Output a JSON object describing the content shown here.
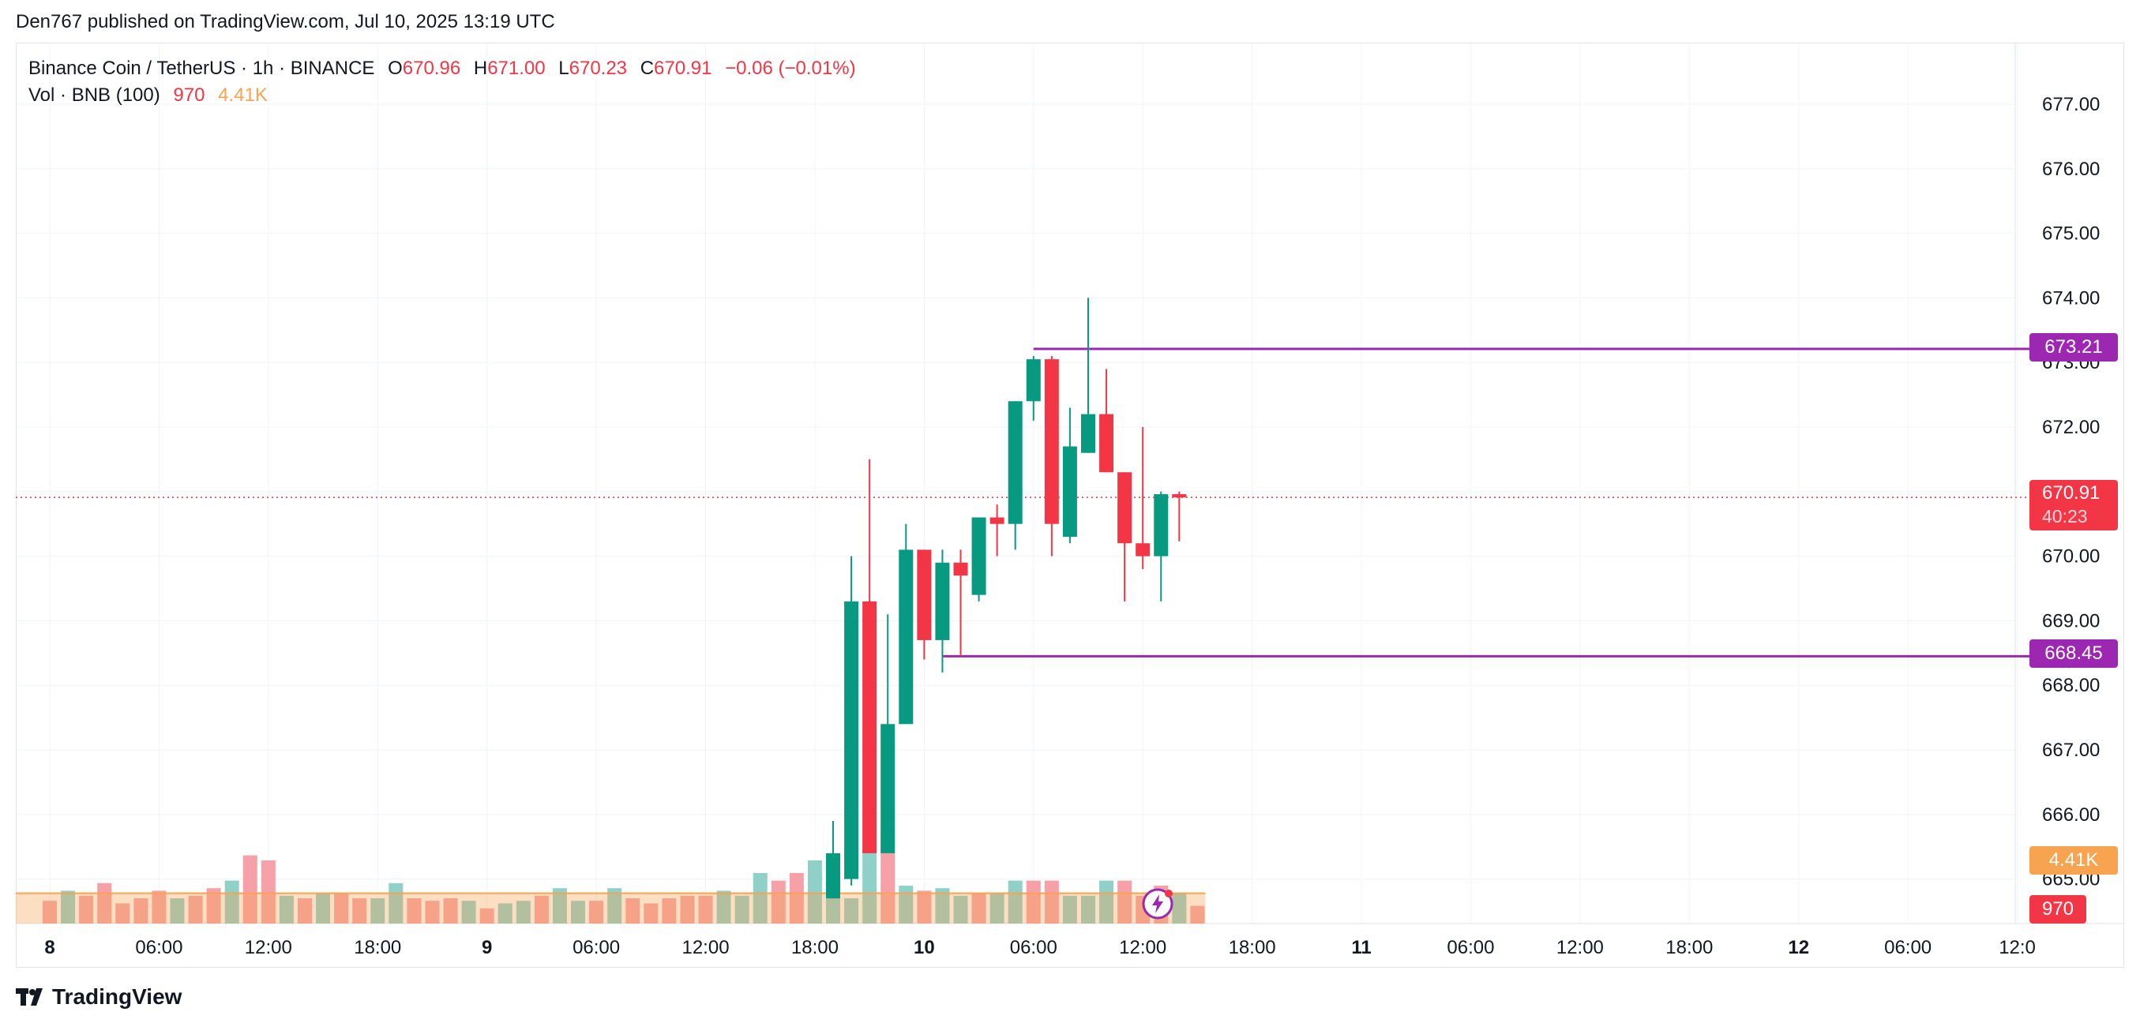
{
  "header": {
    "published_text": "Den767 published on TradingView.com, Jul 10, 2025 13:19 UTC"
  },
  "legend": {
    "symbol": "Binance Coin / TetherUS · 1h · BINANCE",
    "open_label": "O",
    "open_value": "670.96",
    "high_label": "H",
    "high_value": "671.00",
    "low_label": "L",
    "low_value": "670.23",
    "close_label": "C",
    "close_value": "670.91",
    "change": "−0.06 (−0.01%)",
    "volume_label": "Vol · BNB (100)",
    "volume_value": "970",
    "volume_ma_value": "4.41K"
  },
  "price_labels": {
    "resistance": "673.21",
    "support": "668.45",
    "last_price": "670.91",
    "countdown": "40:23",
    "volume_ma": "4.41K",
    "volume": "970"
  },
  "footer": {
    "brand": "TradingView"
  },
  "icons": {
    "logo": "tradingview-logo-icon",
    "bolt": "lightning-bolt-icon"
  },
  "colors": {
    "up": "#089981",
    "down": "#f23645",
    "vol_up": "#8fd0c9",
    "vol_down": "#f6a1a8",
    "vol_ma": "#f7a350",
    "level_line": "#9c27b0",
    "grid": "#f0f3fa"
  },
  "chart_data": {
    "type": "candlestick",
    "symbol": "BNBUSDT",
    "interval": "1h",
    "y_axis": {
      "ticks": [
        "665.00",
        "666.00",
        "667.00",
        "668.00",
        "669.00",
        "670.00",
        "671.00",
        "672.00",
        "673.00",
        "674.00",
        "675.00",
        "676.00",
        "677.00"
      ],
      "range": [
        664.3,
        677.5
      ]
    },
    "x_axis": {
      "ticks": [
        {
          "label": "8",
          "bold": true,
          "bar": 0
        },
        {
          "label": "06:00",
          "bar": 6
        },
        {
          "label": "12:00",
          "bar": 12
        },
        {
          "label": "18:00",
          "bar": 18
        },
        {
          "label": "9",
          "bold": true,
          "bar": 24
        },
        {
          "label": "06:00",
          "bar": 30
        },
        {
          "label": "12:00",
          "bar": 36
        },
        {
          "label": "18:00",
          "bar": 42
        },
        {
          "label": "10",
          "bold": true,
          "bar": 48
        },
        {
          "label": "06:00",
          "bar": 54
        },
        {
          "label": "12:00",
          "bar": 60
        },
        {
          "label": "18:00",
          "bar": 66
        },
        {
          "label": "11",
          "bold": true,
          "bar": 72
        },
        {
          "label": "06:00",
          "bar": 78
        },
        {
          "label": "12:00",
          "bar": 84
        },
        {
          "label": "18:00",
          "bar": 90
        },
        {
          "label": "12",
          "bold": true,
          "bar": 96
        },
        {
          "label": "06:00",
          "bar": 102
        },
        {
          "label": "12:0",
          "bar": 108
        }
      ]
    },
    "candles_first_bar": 43,
    "candles": [
      {
        "o": 664.7,
        "h": 665.9,
        "l": 664.7,
        "c": 665.4
      },
      {
        "o": 665.0,
        "h": 670.0,
        "l": 664.9,
        "c": 669.3
      },
      {
        "o": 669.3,
        "h": 671.5,
        "l": 665.4,
        "c": 665.4
      },
      {
        "o": 665.4,
        "h": 669.1,
        "l": 665.4,
        "c": 667.4
      },
      {
        "o": 667.4,
        "h": 670.5,
        "l": 667.4,
        "c": 670.1
      },
      {
        "o": 670.1,
        "h": 670.1,
        "l": 668.4,
        "c": 668.7
      },
      {
        "o": 668.7,
        "h": 670.1,
        "l": 668.2,
        "c": 669.9
      },
      {
        "o": 669.9,
        "h": 670.1,
        "l": 668.45,
        "c": 669.7
      },
      {
        "o": 669.4,
        "h": 670.6,
        "l": 669.3,
        "c": 670.6
      },
      {
        "o": 670.6,
        "h": 670.8,
        "l": 670.0,
        "c": 670.5
      },
      {
        "o": 670.5,
        "h": 672.4,
        "l": 670.1,
        "c": 672.4
      },
      {
        "o": 672.4,
        "h": 673.1,
        "l": 672.1,
        "c": 673.05
      },
      {
        "o": 673.05,
        "h": 673.1,
        "l": 670.0,
        "c": 670.5
      },
      {
        "o": 670.3,
        "h": 672.3,
        "l": 670.2,
        "c": 671.7
      },
      {
        "o": 671.6,
        "h": 674.0,
        "l": 671.6,
        "c": 672.2
      },
      {
        "o": 672.2,
        "h": 672.9,
        "l": 671.3,
        "c": 671.3
      },
      {
        "o": 671.3,
        "h": 671.3,
        "l": 669.3,
        "c": 670.2
      },
      {
        "o": 670.2,
        "h": 672.0,
        "l": 669.8,
        "c": 670.0
      },
      {
        "o": 670.0,
        "h": 671.0,
        "l": 669.3,
        "c": 670.96
      },
      {
        "o": 670.96,
        "h": 671.0,
        "l": 670.23,
        "c": 670.91
      }
    ],
    "volume": {
      "unit": "relative",
      "ma_level": 4410,
      "bars": [
        {
          "v": 0.45,
          "up": false
        },
        {
          "v": 0.65,
          "up": true
        },
        {
          "v": 0.55,
          "up": false
        },
        {
          "v": 0.8,
          "up": false
        },
        {
          "v": 0.4,
          "up": false
        },
        {
          "v": 0.5,
          "up": false
        },
        {
          "v": 0.65,
          "up": false
        },
        {
          "v": 0.5,
          "up": true
        },
        {
          "v": 0.55,
          "up": false
        },
        {
          "v": 0.7,
          "up": false
        },
        {
          "v": 0.85,
          "up": true
        },
        {
          "v": 1.35,
          "up": false
        },
        {
          "v": 1.25,
          "up": false
        },
        {
          "v": 0.55,
          "up": true
        },
        {
          "v": 0.5,
          "up": false
        },
        {
          "v": 0.6,
          "up": true
        },
        {
          "v": 0.6,
          "up": false
        },
        {
          "v": 0.5,
          "up": false
        },
        {
          "v": 0.5,
          "up": true
        },
        {
          "v": 0.8,
          "up": true
        },
        {
          "v": 0.5,
          "up": false
        },
        {
          "v": 0.45,
          "up": false
        },
        {
          "v": 0.5,
          "up": false
        },
        {
          "v": 0.45,
          "up": true
        },
        {
          "v": 0.3,
          "up": false
        },
        {
          "v": 0.4,
          "up": true
        },
        {
          "v": 0.45,
          "up": true
        },
        {
          "v": 0.55,
          "up": false
        },
        {
          "v": 0.7,
          "up": true
        },
        {
          "v": 0.45,
          "up": true
        },
        {
          "v": 0.45,
          "up": false
        },
        {
          "v": 0.7,
          "up": true
        },
        {
          "v": 0.5,
          "up": false
        },
        {
          "v": 0.4,
          "up": false
        },
        {
          "v": 0.5,
          "up": false
        },
        {
          "v": 0.55,
          "up": false
        },
        {
          "v": 0.55,
          "up": false
        },
        {
          "v": 0.65,
          "up": true
        },
        {
          "v": 0.55,
          "up": true
        },
        {
          "v": 1.0,
          "up": true
        },
        {
          "v": 0.85,
          "up": false
        },
        {
          "v": 1.0,
          "up": false
        },
        {
          "v": 1.25,
          "up": true
        },
        {
          "v": 0.85,
          "up": true
        },
        {
          "v": 0.5,
          "up": true
        },
        {
          "v": 1.5,
          "up": true
        },
        {
          "v": 1.8,
          "up": false
        },
        {
          "v": 0.75,
          "up": true
        },
        {
          "v": 0.65,
          "up": false
        },
        {
          "v": 0.7,
          "up": true
        },
        {
          "v": 0.55,
          "up": true
        },
        {
          "v": 0.6,
          "up": false
        },
        {
          "v": 0.6,
          "up": true
        },
        {
          "v": 0.85,
          "up": true
        },
        {
          "v": 0.85,
          "up": false
        },
        {
          "v": 0.85,
          "up": false
        },
        {
          "v": 0.55,
          "up": true
        },
        {
          "v": 0.55,
          "up": true
        },
        {
          "v": 0.85,
          "up": true
        },
        {
          "v": 0.85,
          "up": false
        },
        {
          "v": 0.55,
          "up": false
        },
        {
          "v": 0.75,
          "up": false
        },
        {
          "v": 0.6,
          "up": true
        },
        {
          "v": 0.35,
          "up": false
        }
      ]
    },
    "levels": [
      {
        "name": "resistance",
        "price": 673.21,
        "from_bar": 54
      },
      {
        "name": "support",
        "price": 668.45,
        "from_bar": 49
      }
    ],
    "last_price_line": 670.91
  }
}
